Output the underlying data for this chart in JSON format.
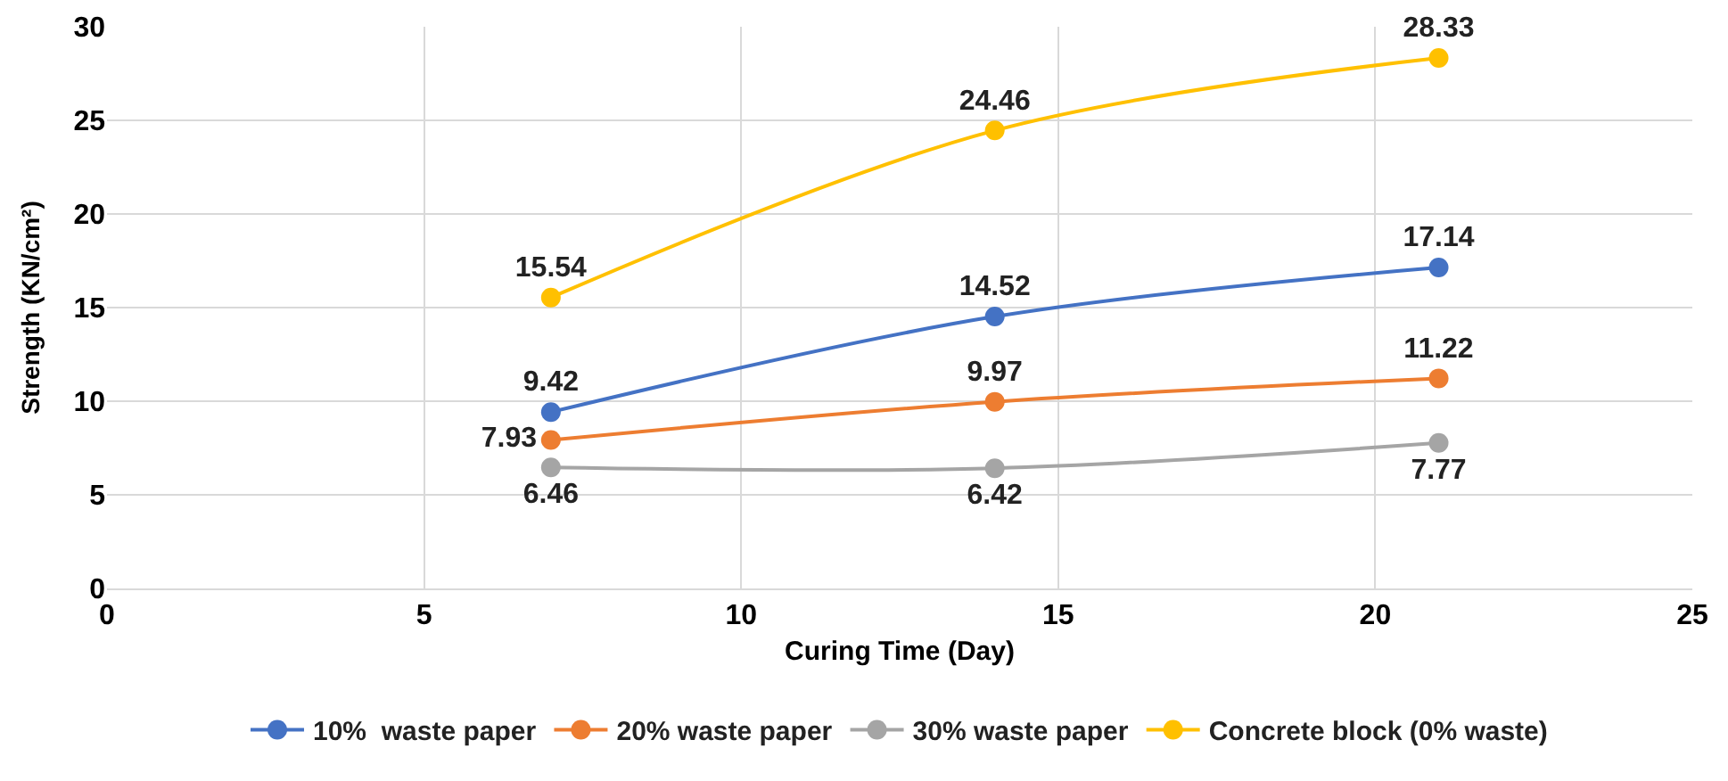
{
  "chart_data": {
    "type": "line",
    "xlabel": "Curing Time (Day)",
    "ylabel": "Strength (KN/cm²)",
    "x": [
      7,
      14,
      21
    ],
    "series": [
      {
        "name": "10%  waste paper",
        "color": "#4472c4",
        "values": [
          9.42,
          14.52,
          17.14
        ]
      },
      {
        "name": "20% waste paper",
        "color": "#ed7d31",
        "values": [
          7.93,
          9.97,
          11.22
        ]
      },
      {
        "name": "30% waste paper",
        "color": "#a5a5a5",
        "values": [
          6.46,
          6.42,
          7.77
        ]
      },
      {
        "name": "Concrete block (0% waste)",
        "color": "#ffc000",
        "values": [
          15.54,
          24.46,
          28.33
        ]
      }
    ],
    "xlim": [
      0,
      25
    ],
    "xticks": [
      0,
      5,
      10,
      15,
      20,
      25
    ],
    "ylim": [
      0,
      30
    ],
    "yticks": [
      0,
      5,
      10,
      15,
      20,
      25,
      30
    ],
    "grid": true,
    "legend": "bottom",
    "marker": "circle",
    "line_style": "solid",
    "data_labels": true
  }
}
